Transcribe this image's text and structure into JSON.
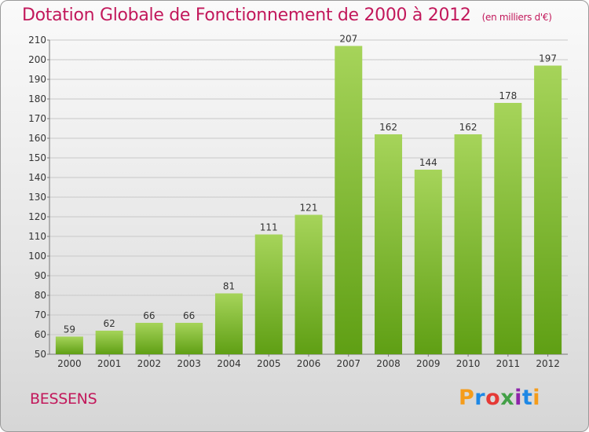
{
  "header": {
    "title": "Dotation Globale de Fonctionnement de 2000 à 2012",
    "subtitle": "(en milliers d'€)"
  },
  "footer": {
    "commune": "BESSENS",
    "logo_text": "Proxiti",
    "logo_colors": [
      "#f59c1a",
      "#1e88e5",
      "#e53935",
      "#43a047",
      "#8e24aa",
      "#1e88e5",
      "#f59c1a"
    ]
  },
  "colors": {
    "bar_top": "#a6d45a",
    "bar_bottom": "#5f9f14",
    "title": "#c2185b",
    "grid": "#c8c8c8"
  },
  "chart_data": {
    "type": "bar",
    "title": "Dotation Globale de Fonctionnement de 2000 à 2012",
    "subtitle": "(en milliers d'€)",
    "categories": [
      "2000",
      "2001",
      "2002",
      "2003",
      "2004",
      "2005",
      "2006",
      "2007",
      "2008",
      "2009",
      "2010",
      "2011",
      "2012"
    ],
    "values": [
      59,
      62,
      66,
      66,
      81,
      111,
      121,
      207,
      162,
      144,
      162,
      178,
      197
    ],
    "ylim": [
      50,
      210
    ],
    "yticks": [
      50,
      60,
      70,
      80,
      90,
      100,
      110,
      120,
      130,
      140,
      150,
      160,
      170,
      180,
      190,
      200,
      210
    ],
    "grid": true,
    "legend": "none"
  }
}
